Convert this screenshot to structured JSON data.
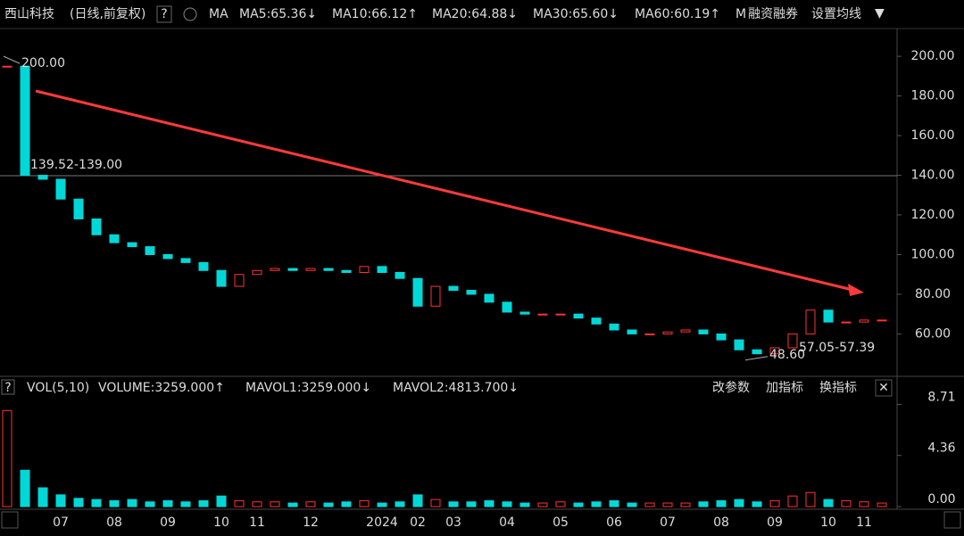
{
  "header": {
    "name": "西山科技",
    "period": "(日线,前复权)",
    "ma_label": "MA",
    "ma_values": [
      {
        "text": "MA5:65.36↓",
        "color": "#ffffff"
      },
      {
        "text": "MA10:66.12↑",
        "color": "#ffff00"
      },
      {
        "text": "MA20:64.88↓",
        "color": "#ff40ff"
      },
      {
        "text": "MA30:65.60↓",
        "color": "#40ff40"
      },
      {
        "text": "MA60:60.19↑",
        "color": "#ffffff"
      }
    ],
    "extra": "M",
    "buttons": [
      "融资融券",
      "设置均线"
    ]
  },
  "chart_data": [
    {
      "type": "candlestick",
      "up_color": "#ff3232",
      "down_color": "#00d8d8",
      "categories": [
        null,
        null,
        null,
        "07",
        null,
        null,
        "08",
        null,
        null,
        "09",
        null,
        null,
        "10",
        null,
        "11",
        null,
        null,
        "12",
        null,
        null,
        null,
        "2024",
        null,
        "02",
        null,
        "03",
        null,
        null,
        "04",
        null,
        null,
        "05",
        null,
        null,
        "06",
        null,
        null,
        "07",
        null,
        null,
        "08",
        null,
        null,
        "09",
        null,
        null,
        "10",
        null,
        "11",
        null
      ],
      "close": [
        195,
        140,
        138,
        128,
        118,
        110,
        106,
        104,
        100,
        98,
        96,
        92,
        84,
        90,
        92,
        93,
        92,
        93,
        92,
        91,
        94,
        91,
        88,
        74,
        84,
        82,
        80,
        76,
        71,
        70,
        70,
        70,
        68,
        65,
        62,
        60,
        60,
        61,
        62,
        60,
        57,
        52,
        50,
        53,
        60,
        72,
        66,
        66,
        67,
        67
      ],
      "ylim": [
        44,
        214
      ],
      "yticks": [
        {
          "value": 60,
          "label": "60.00"
        },
        {
          "value": 80,
          "label": "80.00"
        },
        {
          "value": 100,
          "label": "100.00"
        },
        {
          "value": 120,
          "label": "120.00"
        },
        {
          "value": 140,
          "label": "140.00"
        },
        {
          "value": 160,
          "label": "160.00"
        },
        {
          "value": 180,
          "label": "180.00"
        },
        {
          "value": 200,
          "label": "200.00"
        }
      ],
      "max_label": {
        "value": 200,
        "label": "200.00"
      },
      "min_label": {
        "value": 48.6,
        "label": "48.60"
      },
      "range_labels": [
        "139.52-139.00",
        "57.05-57.39"
      ]
    },
    {
      "type": "bar",
      "title": "VOL(5,10)",
      "help": "?",
      "legend": [
        {
          "text": "VOLUME:3259.000↑",
          "color": "#ffffff"
        },
        {
          "text": "MAVOL1:3259.000↓",
          "color": "#ffff00"
        },
        {
          "text": "MAVOL2:4813.700↓",
          "color": "#ff40ff"
        }
      ],
      "buttons": [
        "改参数",
        "加指标",
        "换指标"
      ],
      "values": [
        8.2,
        3.1,
        1.6,
        1.0,
        0.7,
        0.6,
        0.5,
        0.6,
        0.4,
        0.5,
        0.4,
        0.5,
        0.9,
        0.5,
        0.4,
        0.4,
        0.3,
        0.4,
        0.3,
        0.4,
        0.5,
        0.3,
        0.4,
        1.0,
        0.6,
        0.4,
        0.4,
        0.5,
        0.4,
        0.3,
        0.3,
        0.4,
        0.3,
        0.4,
        0.5,
        0.3,
        0.3,
        0.3,
        0.3,
        0.4,
        0.5,
        0.6,
        0.4,
        0.5,
        0.9,
        1.2,
        0.6,
        0.5,
        0.4,
        0.3
      ],
      "ylim": [
        0,
        9.36
      ],
      "yticks": [
        {
          "value": 0,
          "label": "0.00"
        },
        {
          "value": 4.36,
          "label": "4.36"
        },
        {
          "value": 8.71,
          "label": "8.71"
        }
      ]
    }
  ]
}
